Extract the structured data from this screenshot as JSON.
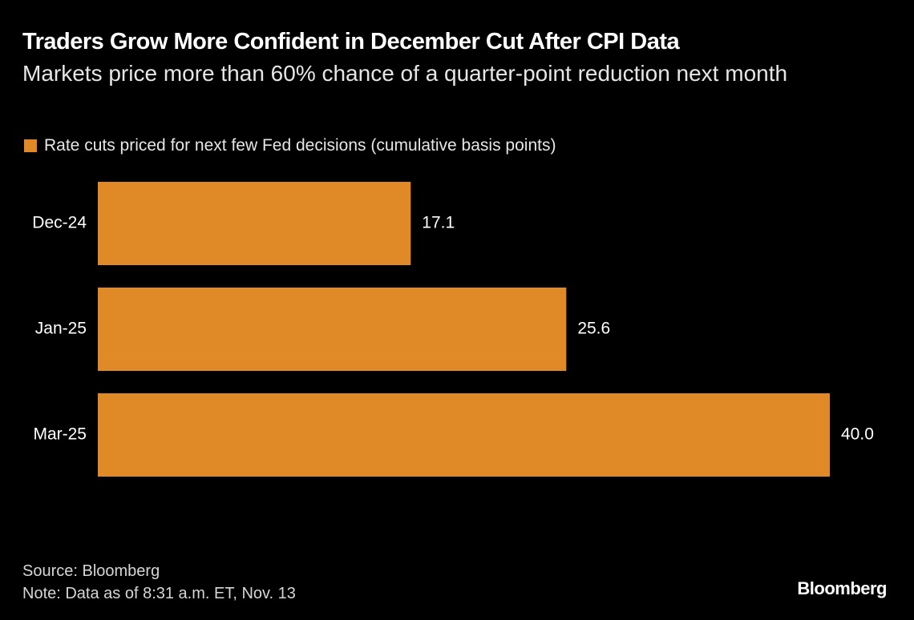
{
  "chart_data": {
    "type": "bar",
    "orientation": "horizontal",
    "title": "Traders Grow More Confident in December Cut After CPI Data",
    "subtitle": "Markets price more than 60% chance of a quarter-point reduction next month",
    "categories": [
      "Dec-24",
      "Jan-25",
      "Mar-25"
    ],
    "series": [
      {
        "name": "Rate cuts priced for next few Fed decisions (cumulative basis points)",
        "color": "#e08a27",
        "values": [
          17.1,
          25.6,
          40.0
        ],
        "value_labels": [
          "17.1",
          "25.6",
          "40.0"
        ]
      }
    ],
    "source": "Source: Bloomberg",
    "note": "Note: Data as of 8:31 a.m. ET, Nov. 13",
    "brand": "Bloomberg"
  }
}
